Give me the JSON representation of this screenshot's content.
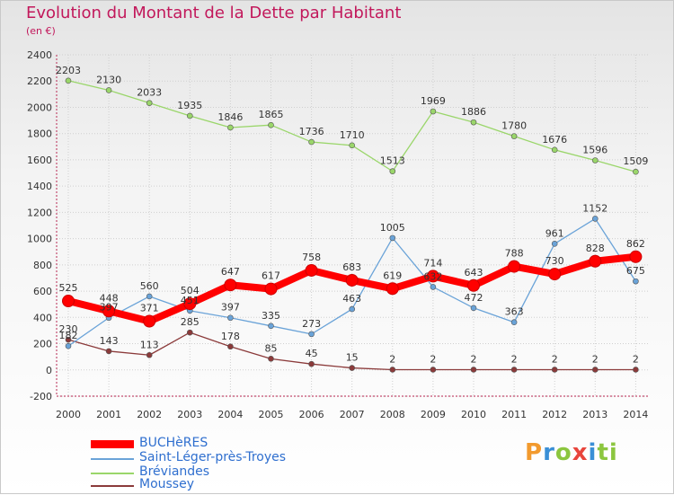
{
  "header": {
    "title": "Evolution du Montant de la Dette par Habitant",
    "unit": "(en €)"
  },
  "logo": {
    "text": "Proxiti",
    "letters": [
      "P",
      "r",
      "o",
      "x",
      "i",
      "ti"
    ]
  },
  "colors": {
    "title": "#c2185b",
    "legend_text": "#2f6fcf",
    "grid": "#cfcfcf"
  },
  "chart_data": {
    "type": "line",
    "x": [
      2000,
      2001,
      2002,
      2003,
      2004,
      2005,
      2006,
      2007,
      2008,
      2009,
      2010,
      2011,
      2012,
      2013,
      2014
    ],
    "ylim": [
      -200,
      2400
    ],
    "yticks": [
      -200,
      0,
      200,
      400,
      600,
      800,
      1000,
      1200,
      1400,
      1600,
      1800,
      2000,
      2200,
      2400
    ],
    "grid": true,
    "legend_position": "bottom-left",
    "series": [
      {
        "name": "BUCHèRES",
        "color": "#ff0000",
        "values": [
          525,
          448,
          371,
          504,
          647,
          617,
          758,
          683,
          619,
          714,
          643,
          788,
          730,
          828,
          862
        ]
      },
      {
        "name": "Saint-Léger-près-Troyes",
        "color": "#6aa3d8",
        "values": [
          182,
          397,
          560,
          451,
          397,
          335,
          273,
          463,
          1005,
          632,
          472,
          363,
          961,
          1152,
          675
        ]
      },
      {
        "name": "Bréviandes",
        "color": "#9ad66a",
        "values": [
          2203,
          2130,
          2033,
          1935,
          1846,
          1865,
          1736,
          1710,
          1513,
          1969,
          1886,
          1780,
          1676,
          1596,
          1509
        ]
      },
      {
        "name": "Moussey",
        "color": "#8b3a3a",
        "values": [
          230,
          143,
          113,
          285,
          178,
          85,
          45,
          15,
          2,
          2,
          2,
          2,
          2,
          2,
          2
        ]
      }
    ]
  }
}
